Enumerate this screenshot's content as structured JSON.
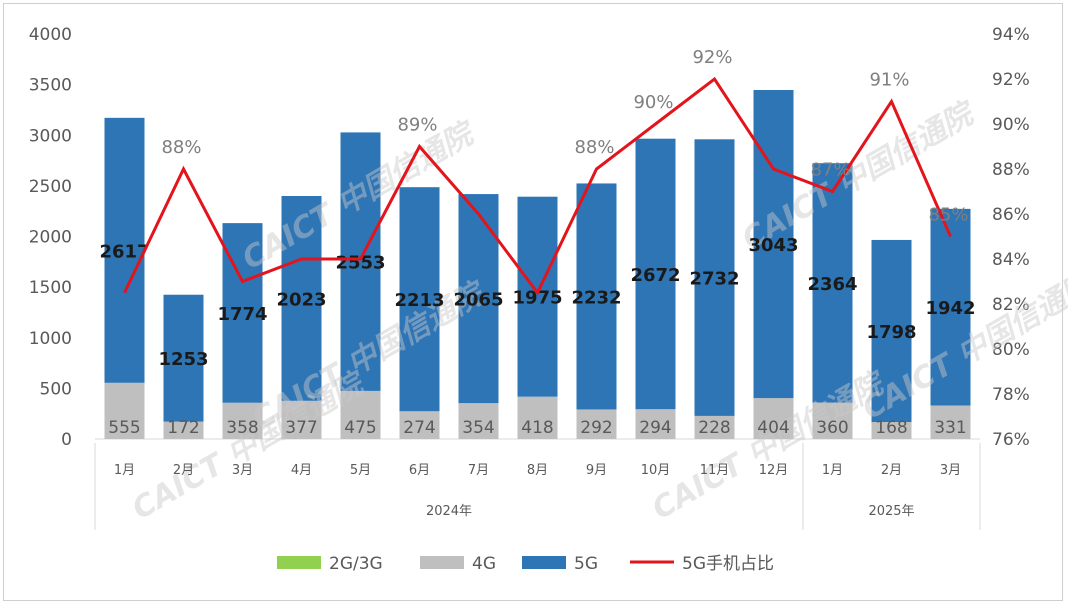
{
  "chart_data": {
    "type": "bar",
    "stacked": true,
    "year_groups": [
      {
        "label": "2024年",
        "categories": [
          "1月",
          "2月",
          "3月",
          "4月",
          "5月",
          "6月",
          "7月",
          "8月",
          "9月",
          "10月",
          "11月",
          "12月"
        ]
      },
      {
        "label": "2025年",
        "categories": [
          "1月",
          "2月",
          "3月"
        ]
      }
    ],
    "categories": [
      "1月",
      "2月",
      "3月",
      "4月",
      "5月",
      "6月",
      "7月",
      "8月",
      "9月",
      "10月",
      "11月",
      "12月",
      "1月",
      "2月",
      "3月"
    ],
    "series": [
      {
        "name": "2G/3G",
        "values": [
          0,
          0,
          0,
          0,
          0,
          0,
          0,
          0,
          0,
          0,
          0,
          0,
          0,
          0,
          0
        ]
      },
      {
        "name": "4G",
        "values": [
          555,
          172,
          358,
          377,
          475,
          274,
          354,
          418,
          292,
          294,
          228,
          404,
          360,
          168,
          331
        ]
      },
      {
        "name": "5G",
        "values": [
          2617,
          1253,
          1774,
          2023,
          2553,
          2213,
          2065,
          1975,
          2232,
          2672,
          2732,
          3043,
          2364,
          1798,
          1942
        ]
      },
      {
        "name": "5G手机占比",
        "type": "line",
        "axis": "right",
        "values": [
          82.5,
          88,
          83,
          84,
          84,
          89,
          86,
          82.5,
          88,
          90,
          92,
          88,
          87,
          91,
          85
        ],
        "labels": [
          "",
          "88%",
          "",
          "",
          "",
          "89%",
          "",
          "",
          "88%",
          "90%",
          "92%",
          "",
          "87%",
          "91%",
          "85%"
        ]
      }
    ],
    "ylim": [
      0,
      4000
    ],
    "yticks": [
      "0",
      "500",
      "1000",
      "1500",
      "2000",
      "2500",
      "3000",
      "3500",
      "4000"
    ],
    "y2lim": [
      76,
      94
    ],
    "y2ticks": [
      "76%",
      "78%",
      "80%",
      "82%",
      "84%",
      "86%",
      "88%",
      "90%",
      "92%",
      "94%"
    ],
    "grid": true,
    "legend_position": "bottom",
    "colors": {
      "2G/3G": "#92d050",
      "4G": "#bfbfbf",
      "5G": "#2e75b6",
      "5G手机占比": "#e3141b"
    }
  },
  "watermark": "CAICT 中国信通院"
}
